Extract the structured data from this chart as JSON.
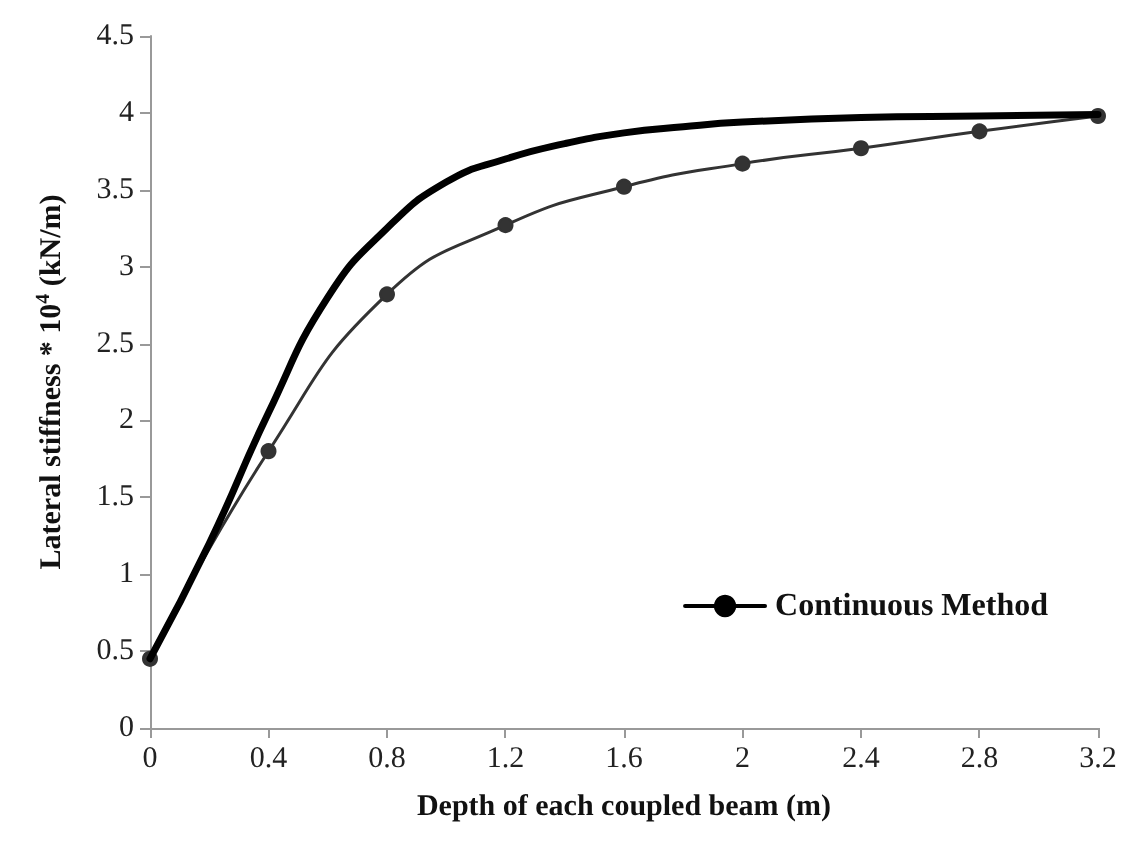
{
  "chart_data": {
    "type": "line",
    "xlabel": "Depth of each coupled beam (m)",
    "ylabel": "Lateral stiffness * 10$^{4}$ (kN/m)",
    "xlim": [
      0,
      3.2
    ],
    "xticks": [
      0,
      0.4,
      0.8,
      1.2,
      1.6,
      2,
      2.4,
      2.8,
      3.2
    ],
    "ylim": [
      0,
      4.5
    ],
    "yticks": [
      0,
      0.5,
      1,
      1.5,
      2,
      2.5,
      3,
      3.5,
      4,
      4.5
    ],
    "grid": false,
    "legend": "bottom right",
    "line_style": "solid",
    "series": [
      {
        "name": "Continuous Method",
        "color": "#000000",
        "marker": "none",
        "x": [
          0,
          0.2,
          0.4,
          0.6,
          0.8,
          1.0,
          1.2,
          1.4,
          1.6,
          1.8,
          2.0,
          2.4,
          2.8,
          3.2
        ],
        "values": [
          0.45,
          1.2,
          2.05,
          2.8,
          3.25,
          3.55,
          3.7,
          3.8,
          3.87,
          3.91,
          3.94,
          3.97,
          3.98,
          3.99
        ]
      },
      {
        "color": "#333333",
        "marker": "circle",
        "x": [
          0,
          0.4,
          0.8,
          1.2,
          1.6,
          2.0,
          2.4,
          2.8,
          3.2
        ],
        "values": [
          0.45,
          1.8,
          2.82,
          3.27,
          3.52,
          3.67,
          3.77,
          3.88,
          3.98
        ]
      }
    ]
  }
}
